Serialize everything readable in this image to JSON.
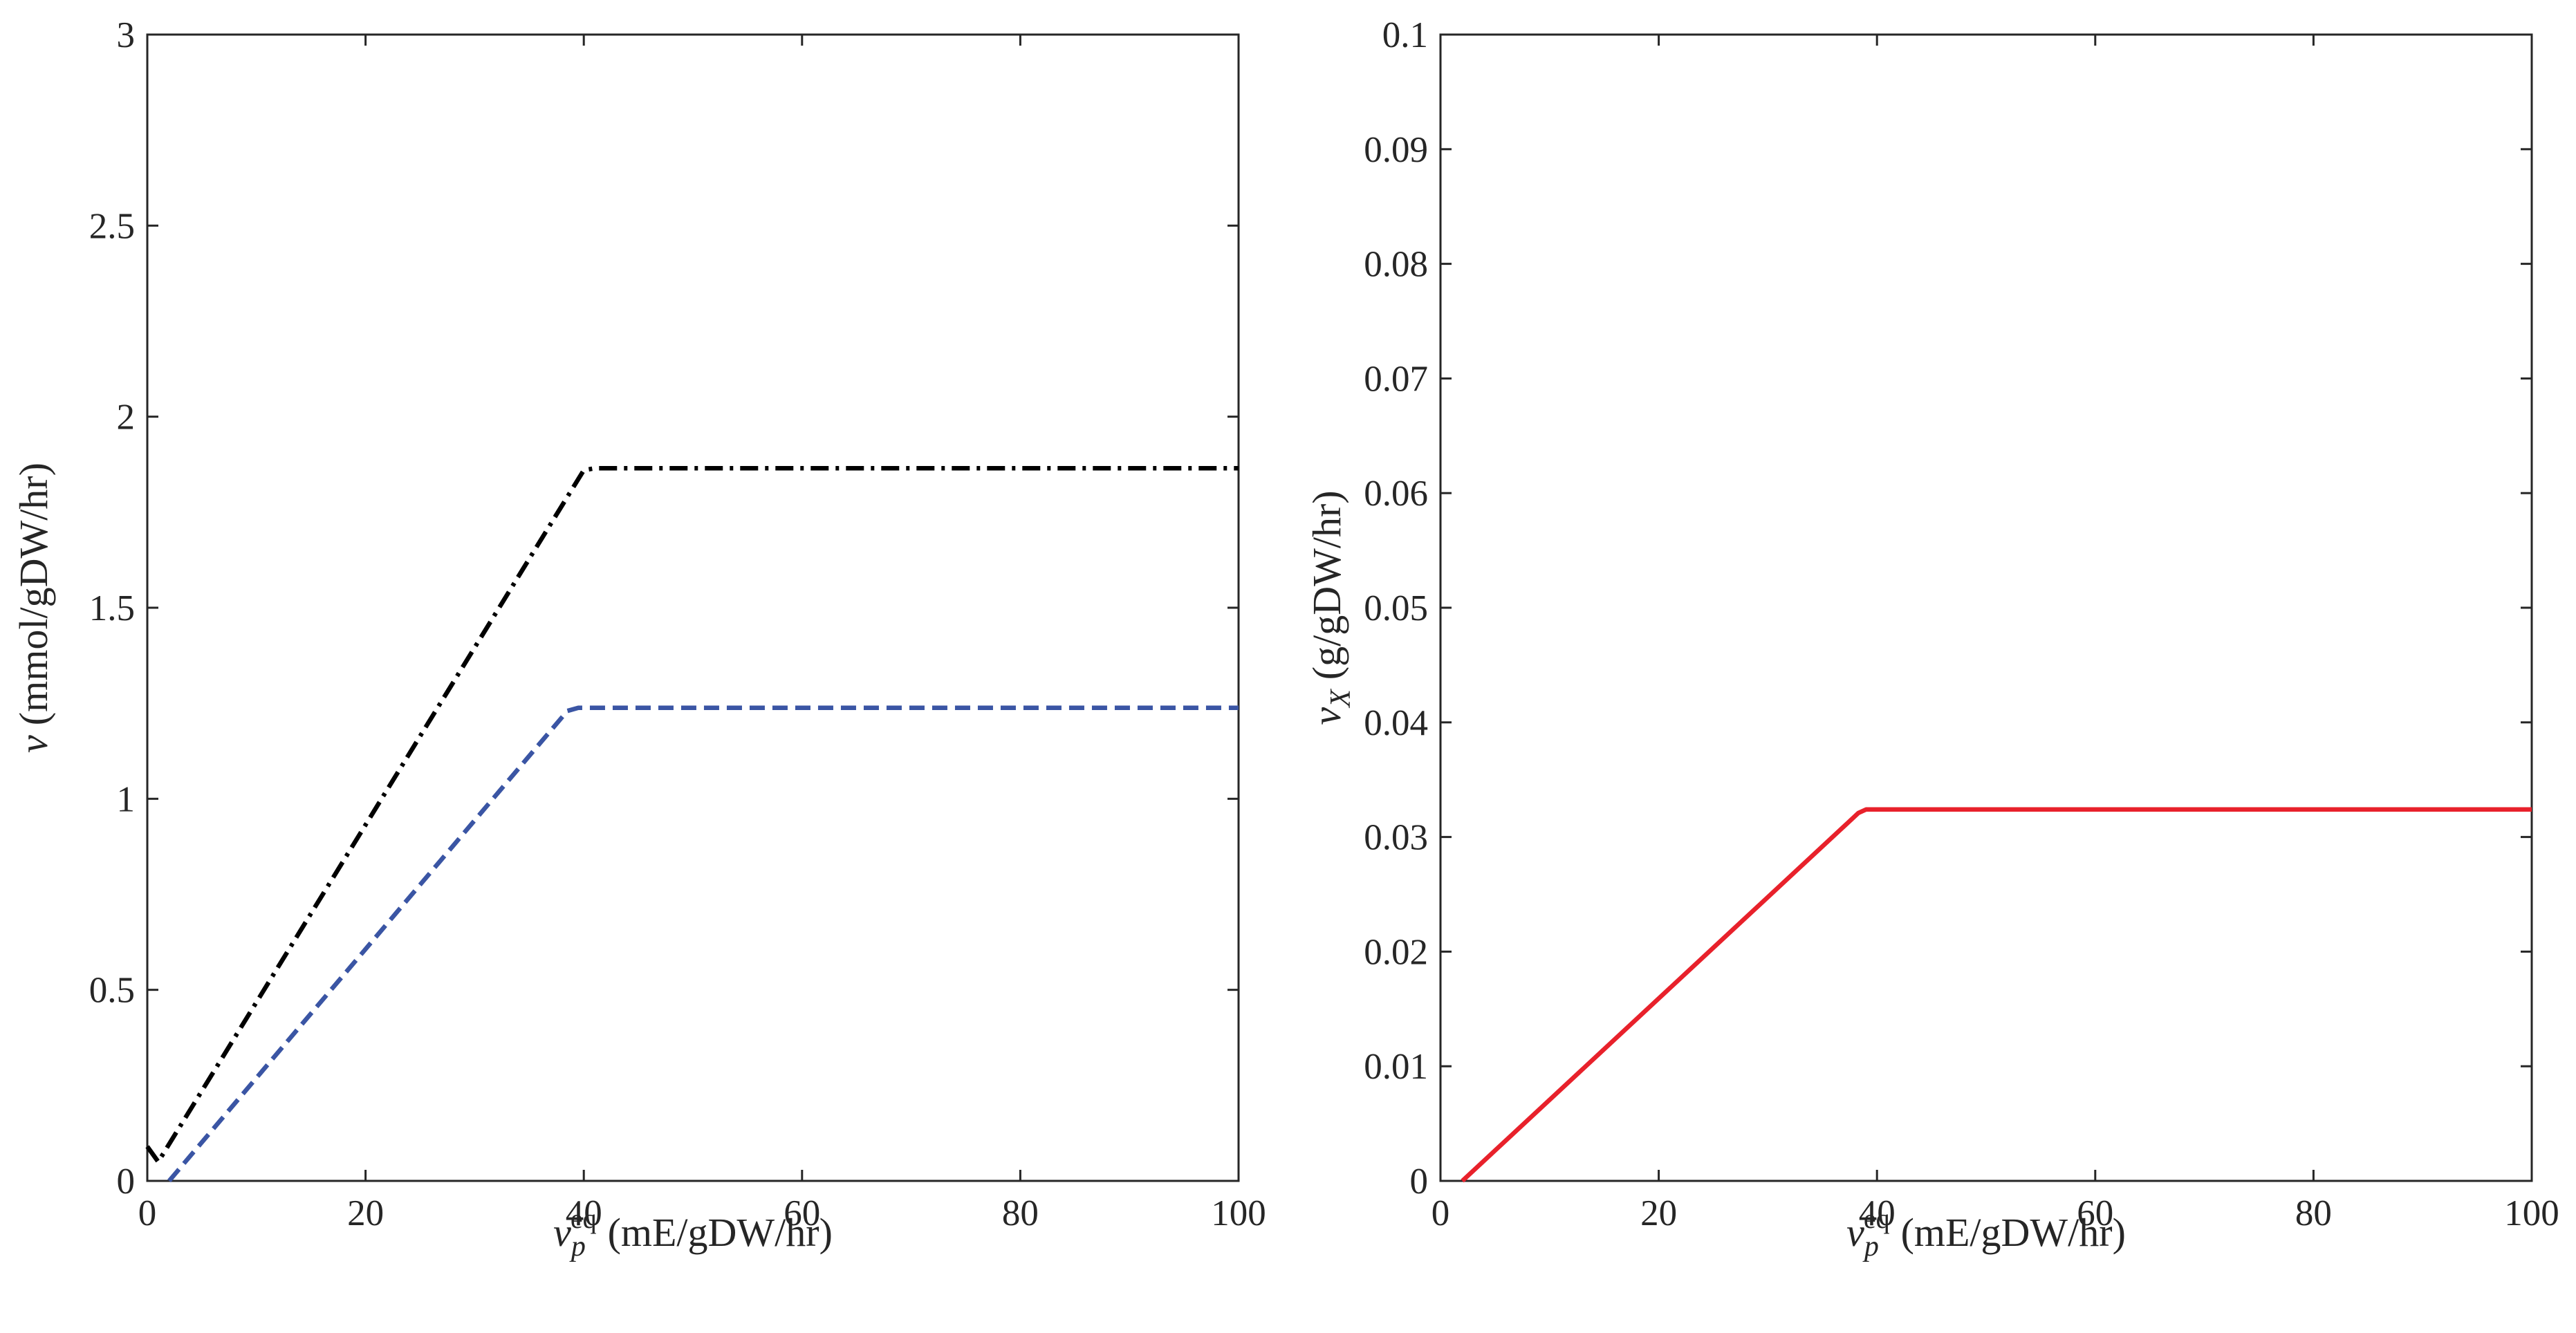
{
  "chart_data": [
    {
      "type": "line",
      "xlabel_var": "v",
      "xlabel_sub": "p",
      "xlabel_sup": "eq",
      "xlabel_unit": "(mE/gDW/hr)",
      "ylabel_var": "v",
      "ylabel_unit": "(mmol/gDW/hr)",
      "xlim": [
        0,
        100
      ],
      "ylim": [
        0,
        3
      ],
      "xticks": [
        0,
        20,
        40,
        60,
        80,
        100
      ],
      "xtick_labels": [
        "0",
        "20",
        "40",
        "60",
        "80",
        "100"
      ],
      "yticks": [
        0,
        0.5,
        1,
        1.5,
        2,
        2.5,
        3
      ],
      "ytick_labels": [
        "0",
        "0.5",
        "1",
        "1.5",
        "2",
        "2.5",
        "3"
      ],
      "grid": false,
      "series": [
        {
          "name": "dash-dot black",
          "color": "#000000",
          "style": "dashdot",
          "x": [
            0,
            1,
            40,
            41,
            100
          ],
          "y": [
            0.09,
            0.05,
            1.86,
            1.865,
            1.865
          ]
        },
        {
          "name": "dashed blue",
          "color": "#3a55a4",
          "style": "dashed",
          "x": [
            2,
            38.5,
            39.5,
            100
          ],
          "y": [
            0,
            1.23,
            1.238,
            1.238
          ]
        }
      ]
    },
    {
      "type": "line",
      "xlabel_var": "v",
      "xlabel_sub": "p",
      "xlabel_sup": "eq",
      "xlabel_unit": "(mE/gDW/hr)",
      "ylabel_var": "v",
      "ylabel_sub": "X",
      "ylabel_unit": "(g/gDW/hr)",
      "xlim": [
        0,
        100
      ],
      "ylim": [
        0,
        0.1
      ],
      "xticks": [
        0,
        20,
        40,
        60,
        80,
        100
      ],
      "xtick_labels": [
        "0",
        "20",
        "40",
        "60",
        "80",
        "100"
      ],
      "yticks": [
        0,
        0.01,
        0.02,
        0.03,
        0.04,
        0.05,
        0.06,
        0.07,
        0.08,
        0.09,
        0.1
      ],
      "ytick_labels": [
        "0",
        "0.01",
        "0.02",
        "0.03",
        "0.04",
        "0.05",
        "0.06",
        "0.07",
        "0.08",
        "0.09",
        "0.1"
      ],
      "grid": false,
      "series": [
        {
          "name": "solid red",
          "color": "#e8212b",
          "style": "solid",
          "x": [
            2,
            38.3,
            39,
            100
          ],
          "y": [
            0,
            0.0321,
            0.0324,
            0.0324
          ]
        }
      ]
    }
  ]
}
